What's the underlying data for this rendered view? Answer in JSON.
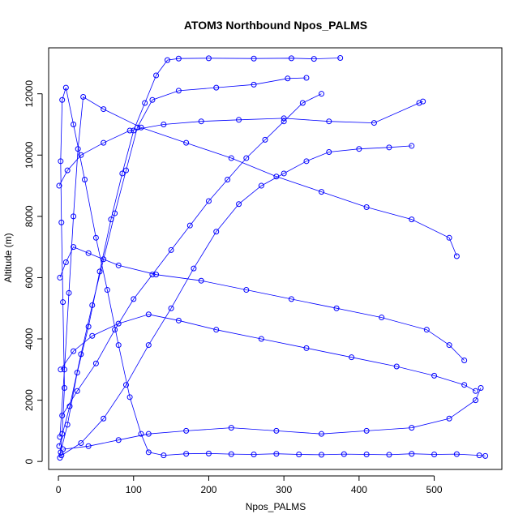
{
  "chart_data": {
    "type": "scatter",
    "title": "ATOM3 Northbound Npos_PALMS",
    "xlabel": "Npos_PALMS",
    "ylabel": "Altitude (m)",
    "xlim": [
      -13,
      590
    ],
    "ylim": [
      -260,
      13500
    ],
    "x_ticks": [
      0,
      100,
      200,
      300,
      400,
      500
    ],
    "x_tick_labels": [
      "0",
      "100",
      "200",
      "300",
      "400",
      "500"
    ],
    "y_ticks": [
      0,
      2000,
      4000,
      6000,
      8000,
      10000,
      12000
    ],
    "y_tick_labels": [
      "0",
      "2000",
      "4000",
      "6000",
      "8000",
      "10000",
      "12000"
    ],
    "grid": false,
    "legend": "none",
    "marker": "open-circle",
    "line_style": "connected",
    "point_color": "#0000ff",
    "line_color": "#0000ff",
    "series": [
      {
        "points": [
          [
            2,
            120
          ],
          [
            5,
            900
          ],
          [
            8,
            2400
          ],
          [
            6,
            5200
          ],
          [
            4,
            7800
          ],
          [
            3,
            9800
          ],
          [
            5,
            11800
          ],
          [
            10,
            12200
          ],
          [
            20,
            11000
          ],
          [
            35,
            9200
          ],
          [
            50,
            7300
          ],
          [
            65,
            5600
          ],
          [
            80,
            3800
          ],
          [
            95,
            2100
          ],
          [
            110,
            900
          ],
          [
            120,
            300
          ],
          [
            140,
            200
          ],
          [
            170,
            250
          ],
          [
            200,
            260
          ],
          [
            230,
            240
          ],
          [
            260,
            230
          ],
          [
            290,
            250
          ],
          [
            320,
            230
          ],
          [
            350,
            220
          ],
          [
            380,
            240
          ],
          [
            410,
            230
          ],
          [
            440,
            220
          ],
          [
            470,
            250
          ],
          [
            500,
            230
          ],
          [
            530,
            240
          ],
          [
            560,
            200
          ],
          [
            568,
            180
          ]
        ]
      },
      {
        "points": [
          [
            3,
            300
          ],
          [
            12,
            1200
          ],
          [
            25,
            2900
          ],
          [
            40,
            4400
          ],
          [
            55,
            6200
          ],
          [
            70,
            7900
          ],
          [
            85,
            9400
          ],
          [
            100,
            10800
          ],
          [
            115,
            11700
          ],
          [
            130,
            12600
          ],
          [
            145,
            13100
          ],
          [
            160,
            13150
          ],
          [
            200,
            13160
          ],
          [
            260,
            13150
          ],
          [
            310,
            13160
          ],
          [
            340,
            13140
          ],
          [
            375,
            13170
          ]
        ]
      },
      {
        "points": [
          [
            1,
            500
          ],
          [
            15,
            1800
          ],
          [
            30,
            3500
          ],
          [
            45,
            5100
          ],
          [
            60,
            6600
          ],
          [
            75,
            8100
          ],
          [
            90,
            9500
          ],
          [
            105,
            10900
          ],
          [
            125,
            11800
          ],
          [
            160,
            12100
          ],
          [
            210,
            12200
          ],
          [
            260,
            12300
          ],
          [
            305,
            12500
          ],
          [
            330,
            12520
          ]
        ]
      },
      {
        "points": [
          [
            2,
            800
          ],
          [
            8,
            3000
          ],
          [
            14,
            5500
          ],
          [
            20,
            8000
          ],
          [
            26,
            10200
          ],
          [
            33,
            11900
          ],
          [
            60,
            11500
          ],
          [
            110,
            10900
          ],
          [
            170,
            10400
          ],
          [
            230,
            9900
          ],
          [
            290,
            9300
          ],
          [
            350,
            8800
          ],
          [
            410,
            8300
          ],
          [
            470,
            7900
          ],
          [
            520,
            7300
          ],
          [
            530,
            6700
          ]
        ]
      },
      {
        "points": [
          [
            4,
            200
          ],
          [
            30,
            600
          ],
          [
            60,
            1400
          ],
          [
            90,
            2500
          ],
          [
            120,
            3800
          ],
          [
            150,
            5000
          ],
          [
            180,
            6300
          ],
          [
            210,
            7500
          ],
          [
            240,
            8400
          ],
          [
            270,
            9000
          ],
          [
            300,
            9400
          ],
          [
            330,
            9800
          ],
          [
            360,
            10100
          ],
          [
            400,
            10200
          ],
          [
            440,
            10250
          ],
          [
            470,
            10300
          ]
        ]
      },
      {
        "points": [
          [
            5,
            1500
          ],
          [
            25,
            2300
          ],
          [
            50,
            3200
          ],
          [
            75,
            4300
          ],
          [
            100,
            5300
          ],
          [
            125,
            6100
          ],
          [
            150,
            6900
          ],
          [
            175,
            7700
          ],
          [
            200,
            8500
          ],
          [
            225,
            9200
          ],
          [
            250,
            9900
          ],
          [
            275,
            10500
          ],
          [
            300,
            11100
          ],
          [
            325,
            11700
          ],
          [
            350,
            12000
          ]
        ]
      },
      {
        "points": [
          [
            2,
            6000
          ],
          [
            10,
            6500
          ],
          [
            20,
            7000
          ],
          [
            40,
            6800
          ],
          [
            80,
            6400
          ],
          [
            130,
            6100
          ],
          [
            190,
            5900
          ],
          [
            250,
            5600
          ],
          [
            310,
            5300
          ],
          [
            370,
            5000
          ],
          [
            430,
            4700
          ],
          [
            490,
            4300
          ],
          [
            520,
            3800
          ],
          [
            540,
            3300
          ]
        ]
      },
      {
        "points": [
          [
            3,
            3000
          ],
          [
            20,
            3600
          ],
          [
            45,
            4100
          ],
          [
            80,
            4500
          ],
          [
            120,
            4800
          ],
          [
            160,
            4600
          ],
          [
            210,
            4300
          ],
          [
            270,
            4000
          ],
          [
            330,
            3700
          ],
          [
            390,
            3400
          ],
          [
            450,
            3100
          ],
          [
            500,
            2800
          ],
          [
            540,
            2500
          ],
          [
            555,
            2300
          ]
        ]
      },
      {
        "points": [
          [
            1,
            9000
          ],
          [
            12,
            9500
          ],
          [
            30,
            10000
          ],
          [
            60,
            10400
          ],
          [
            95,
            10800
          ],
          [
            140,
            11000
          ],
          [
            190,
            11100
          ],
          [
            240,
            11150
          ],
          [
            300,
            11200
          ],
          [
            360,
            11100
          ],
          [
            420,
            11050
          ],
          [
            480,
            11700
          ],
          [
            485,
            11750
          ]
        ]
      },
      {
        "points": [
          [
            6,
            400
          ],
          [
            40,
            500
          ],
          [
            80,
            700
          ],
          [
            120,
            900
          ],
          [
            170,
            1000
          ],
          [
            230,
            1100
          ],
          [
            290,
            1000
          ],
          [
            350,
            900
          ],
          [
            410,
            1000
          ],
          [
            470,
            1100
          ],
          [
            520,
            1400
          ],
          [
            555,
            2000
          ],
          [
            562,
            2400
          ]
        ]
      }
    ]
  }
}
